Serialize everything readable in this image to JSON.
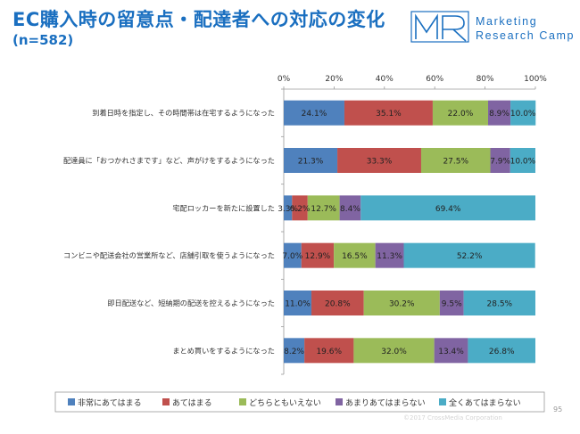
{
  "header": {
    "title": "EC購入時の留意点・配達者への対応の変化",
    "subtitle": "(n=582)"
  },
  "logo": {
    "name": "Marketing Research Camp",
    "mark": "MR",
    "line1": "Marketing",
    "line2": "Research Camp"
  },
  "footer": {
    "copyright": "©2017 CrossMedia Corporation",
    "page_number": "95"
  },
  "colors": {
    "accent": "#1a6fc0",
    "series": [
      "#4f81bd",
      "#c0504d",
      "#9bbb59",
      "#8064a2",
      "#4bacc6"
    ]
  },
  "chart_data": {
    "type": "bar",
    "orientation": "horizontal",
    "stacked": true,
    "title": "EC購入時の留意点・配達者への対応の変化",
    "xlim": [
      0,
      100
    ],
    "x_ticks": [
      "0%",
      "20%",
      "40%",
      "60%",
      "80%",
      "100%"
    ],
    "x_tick_values": [
      0,
      20,
      40,
      60,
      80,
      100
    ],
    "grid": true,
    "legend_position": "bottom",
    "categories": [
      "到着日時を指定し、その時間帯は在宅するようになった",
      "配達員に「おつかれさまです」など、声がけをするようになった",
      "宅配ロッカーを新たに設置した",
      "コンビニや配送会社の営業所など、店舗引取を使うようになった",
      "即日配送など、短納期の配送を控えるようになった",
      "まとめ買いをするようになった"
    ],
    "series": [
      {
        "name": "非常にあてはまる",
        "values": [
          24.1,
          21.3,
          3.3,
          7.0,
          11.0,
          8.2
        ],
        "labels": [
          "24.1%",
          "21.3%",
          "3.3%",
          "7.0%",
          "11.0%",
          "8.2%"
        ]
      },
      {
        "name": "あてはまる",
        "values": [
          35.1,
          33.3,
          6.2,
          12.9,
          20.8,
          19.6
        ],
        "labels": [
          "35.1%",
          "33.3%",
          "6.2%",
          "12.9%",
          "20.8%",
          "19.6%"
        ]
      },
      {
        "name": "どちらともいえない",
        "values": [
          22.0,
          27.5,
          12.7,
          16.5,
          30.2,
          32.0
        ],
        "labels": [
          "22.0%",
          "27.5%",
          "12.7%",
          "16.5%",
          "30.2%",
          "32.0%"
        ]
      },
      {
        "name": "あまりあてはまらない",
        "values": [
          8.9,
          7.9,
          8.4,
          11.3,
          9.5,
          13.4
        ],
        "labels": [
          "8.9%",
          "7.9%",
          "8.4%",
          "11.3%",
          "9.5%",
          "13.4%"
        ]
      },
      {
        "name": "全くあてはまらない",
        "values": [
          10.0,
          10.0,
          69.4,
          52.2,
          28.5,
          26.8
        ],
        "labels": [
          "10.0%",
          "10.0%",
          "69.4%",
          "52.2%",
          "28.5%",
          "26.8%"
        ]
      }
    ]
  }
}
